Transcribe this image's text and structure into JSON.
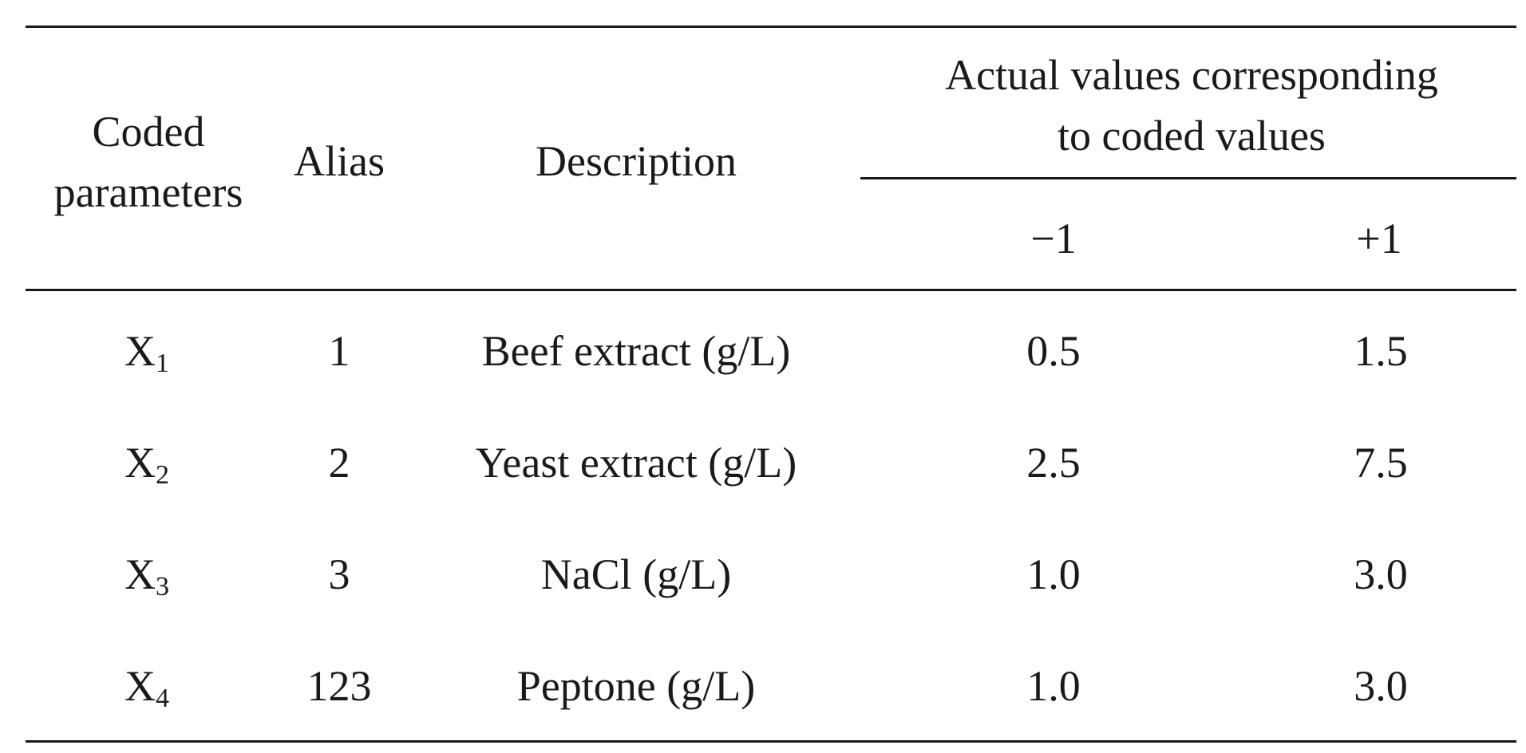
{
  "table": {
    "headers": {
      "coded_parameters_line1": "Coded",
      "coded_parameters_line2": "parameters",
      "alias": "Alias",
      "description": "Description",
      "actual_values_line1": "Actual values corresponding",
      "actual_values_line2": "to coded values",
      "minus_one": "−1",
      "plus_one": "+1"
    },
    "rows": [
      {
        "param": "X",
        "sub": "1",
        "alias": "1",
        "description": "Beef extract (g/L)",
        "low": "0.5",
        "high": "1.5"
      },
      {
        "param": "X",
        "sub": "2",
        "alias": "2",
        "description": "Yeast extract (g/L)",
        "low": "2.5",
        "high": "7.5"
      },
      {
        "param": "X",
        "sub": "3",
        "alias": "3",
        "description": "NaCl (g/L)",
        "low": "1.0",
        "high": "3.0"
      },
      {
        "param": "X",
        "sub": "4",
        "alias": "123",
        "description": "Peptone (g/L)",
        "low": "1.0",
        "high": "3.0"
      }
    ]
  }
}
